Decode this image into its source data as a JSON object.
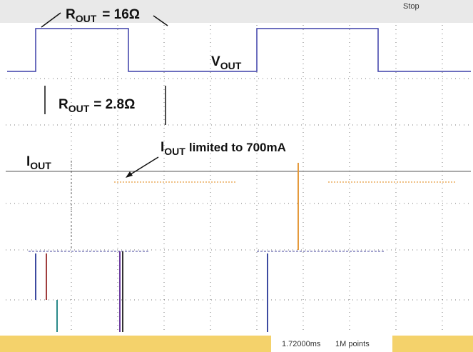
{
  "status": {
    "run_state": "Stop",
    "time": "1.72000ms",
    "record": "1M points"
  },
  "annotations": {
    "r_out_high": {
      "symbol": "R",
      "subscript": "OUT",
      "text": "= 16Ω"
    },
    "v_out": {
      "symbol": "V",
      "subscript": "OUT"
    },
    "r_out_low": {
      "symbol": "R",
      "subscript": "OUT",
      "text": "= 2.8Ω"
    },
    "i_out_limit": {
      "symbol": "I",
      "subscript": "OUT",
      "text": "limited to 700mA"
    },
    "i_out": {
      "symbol": "I",
      "subscript": "OUT"
    }
  }
}
